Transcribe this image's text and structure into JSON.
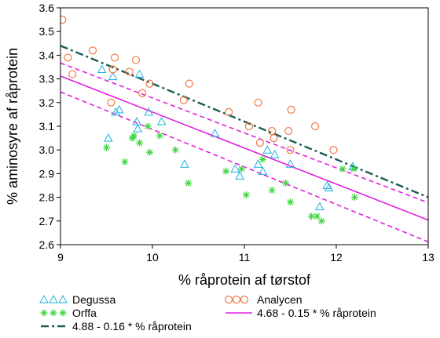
{
  "chart_data": {
    "type": "scatter",
    "title": "",
    "xlabel": "% råprotein af tørstof",
    "ylabel": "% aminosyre af råprotein",
    "xlim": [
      9,
      13
    ],
    "ylim": [
      2.6,
      3.6
    ],
    "xticks": [
      "9",
      "10",
      "11",
      "12",
      "13"
    ],
    "yticks": [
      "2.6",
      "2.7",
      "2.8",
      "2.9",
      "3.0",
      "3.1",
      "3.2",
      "3.3",
      "3.4",
      "3.5",
      "3.6"
    ],
    "grid": false,
    "legend_position": "bottom",
    "series": [
      {
        "name": "Degussa",
        "marker": "triangle",
        "color": "#1fb3e0",
        "points": [
          [
            9.45,
            3.34
          ],
          [
            9.57,
            3.31
          ],
          [
            9.6,
            3.16
          ],
          [
            9.64,
            3.17
          ],
          [
            9.52,
            3.05
          ],
          [
            9.83,
            3.12
          ],
          [
            9.84,
            3.09
          ],
          [
            9.86,
            3.32
          ],
          [
            9.96,
            3.16
          ],
          [
            10.1,
            3.12
          ],
          [
            10.35,
            2.94
          ],
          [
            10.68,
            3.07
          ],
          [
            10.9,
            2.92
          ],
          [
            10.95,
            2.89
          ],
          [
            11.15,
            2.94
          ],
          [
            11.2,
            2.91
          ],
          [
            11.25,
            3.0
          ],
          [
            11.33,
            2.98
          ],
          [
            11.5,
            2.94
          ],
          [
            11.82,
            2.76
          ],
          [
            11.9,
            2.85
          ],
          [
            11.92,
            2.84
          ],
          [
            12.18,
            2.93
          ]
        ]
      },
      {
        "name": "Orffa",
        "marker": "star",
        "color": "#3fd63f",
        "points": [
          [
            9.5,
            3.01
          ],
          [
            9.7,
            2.95
          ],
          [
            9.78,
            3.05
          ],
          [
            9.8,
            3.06
          ],
          [
            9.86,
            3.03
          ],
          [
            9.95,
            3.1
          ],
          [
            9.97,
            2.99
          ],
          [
            10.08,
            3.06
          ],
          [
            10.25,
            3.0
          ],
          [
            10.39,
            2.86
          ],
          [
            10.8,
            2.91
          ],
          [
            10.97,
            2.92
          ],
          [
            11.02,
            2.81
          ],
          [
            11.2,
            2.96
          ],
          [
            11.3,
            2.83
          ],
          [
            11.45,
            2.86
          ],
          [
            11.5,
            2.78
          ],
          [
            11.73,
            2.72
          ],
          [
            11.79,
            2.72
          ],
          [
            11.84,
            2.7
          ],
          [
            12.07,
            2.92
          ],
          [
            12.19,
            2.92
          ],
          [
            12.2,
            2.8
          ]
        ]
      },
      {
        "name": "Analycen",
        "marker": "circle",
        "color": "#f07840",
        "points": [
          [
            9.02,
            3.55
          ],
          [
            9.08,
            3.39
          ],
          [
            9.13,
            3.32
          ],
          [
            9.35,
            3.42
          ],
          [
            9.55,
            3.2
          ],
          [
            9.57,
            3.34
          ],
          [
            9.59,
            3.39
          ],
          [
            9.75,
            3.33
          ],
          [
            9.82,
            3.38
          ],
          [
            9.89,
            3.24
          ],
          [
            9.97,
            3.28
          ],
          [
            10.34,
            3.21
          ],
          [
            10.4,
            3.28
          ],
          [
            10.83,
            3.16
          ],
          [
            11.05,
            3.1
          ],
          [
            11.15,
            3.2
          ],
          [
            11.17,
            3.03
          ],
          [
            11.3,
            3.08
          ],
          [
            11.32,
            3.05
          ],
          [
            11.48,
            3.08
          ],
          [
            11.5,
            3.0
          ],
          [
            11.51,
            3.17
          ],
          [
            11.77,
            3.1
          ],
          [
            11.97,
            3.0
          ]
        ]
      }
    ],
    "lines": [
      {
        "name": "4.88 - 0.16 * % råprotein",
        "style": "dash-dot",
        "color": "#1a5c56",
        "intercept": 4.88,
        "slope": -0.16
      },
      {
        "name": "4.68 - 0.15 * % råprotein",
        "style": "solid",
        "color": "#e020e0",
        "intercept": 4.68,
        "slope": -0.152,
        "band": {
          "style": "dashed",
          "color": "#e020e0",
          "upper": [
            [
              9,
              3.367
            ],
            [
              13,
              2.777
            ]
          ],
          "lower": [
            [
              9,
              3.245
            ],
            [
              13,
              2.612
            ]
          ]
        }
      }
    ],
    "legend": [
      {
        "label": "Degussa",
        "series": "Degussa"
      },
      {
        "label": "Analycen",
        "series": "Analycen"
      },
      {
        "label": "Orffa",
        "series": "Orffa"
      },
      {
        "label": "4.68 - 0.15 * % råprotein",
        "series": "4.68 - 0.15 * % råprotein"
      },
      {
        "label": "4.88 - 0.16 * % råprotein",
        "series": "4.88 - 0.16 * % råprotein"
      }
    ]
  }
}
